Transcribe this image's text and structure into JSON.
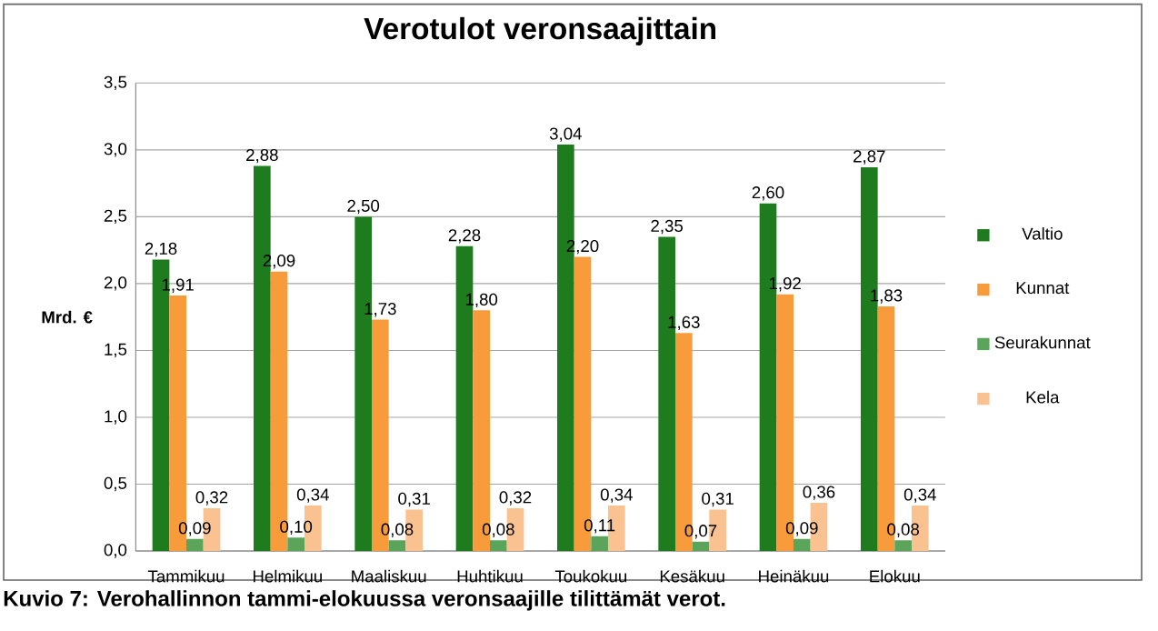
{
  "chart_data": {
    "type": "bar",
    "title": "Verotulot veronsaajittain",
    "ylabel": "Mrd. €",
    "categories": [
      "Tammikuu",
      "Helmikuu",
      "Maaliskuu",
      "Huhtikuu",
      "Toukokuu",
      "Kesäkuu",
      "Heinäkuu",
      "Elokuu"
    ],
    "series": [
      {
        "name": "Valtio",
        "color": "#1e7b1e",
        "values": [
          2.18,
          2.88,
          2.5,
          2.28,
          3.04,
          2.35,
          2.6,
          2.87
        ],
        "value_labels": [
          "2,18",
          "2,88",
          "2,50",
          "2,28",
          "3,04",
          "2,35",
          "2,60",
          "2,87"
        ]
      },
      {
        "name": "Kunnat",
        "color": "#f79b3b",
        "values": [
          1.91,
          2.09,
          1.73,
          1.8,
          2.2,
          1.63,
          1.92,
          1.83
        ],
        "value_labels": [
          "1,91",
          "2,09",
          "1,73",
          "1,80",
          "2,20",
          "1,63",
          "1,92",
          "1,83"
        ]
      },
      {
        "name": "Seurakunnat",
        "color": "#5ba55b",
        "values": [
          0.09,
          0.1,
          0.08,
          0.08,
          0.11,
          0.07,
          0.09,
          0.08
        ],
        "value_labels": [
          "0,09",
          "0,10",
          "0,08",
          "0,08",
          "0,11",
          "0,07",
          "0,09",
          "0,08"
        ]
      },
      {
        "name": "Kela",
        "color": "#fac191",
        "values": [
          0.32,
          0.34,
          0.31,
          0.32,
          0.34,
          0.31,
          0.36,
          0.34
        ],
        "value_labels": [
          "0,32",
          "0,34",
          "0,31",
          "0,32",
          "0,34",
          "0,31",
          "0,36",
          "0,34"
        ]
      }
    ],
    "ylim": [
      0,
      3.5
    ],
    "yticks": [
      {
        "value": 0,
        "label": "0,0"
      },
      {
        "value": 0.5,
        "label": "0,5"
      },
      {
        "value": 1,
        "label": "1,0"
      },
      {
        "value": 1.5,
        "label": "1,5"
      },
      {
        "value": 2,
        "label": "2,0"
      },
      {
        "value": 2.5,
        "label": "2,5"
      },
      {
        "value": 3,
        "label": "3,0"
      },
      {
        "value": 3.5,
        "label": "3,5"
      }
    ],
    "grid": "y",
    "legend": "right",
    "annotations": [
      "Kuvio 7: Verohallinnon tammi-elokuussa  veronsaajille tilittämät verot."
    ]
  }
}
